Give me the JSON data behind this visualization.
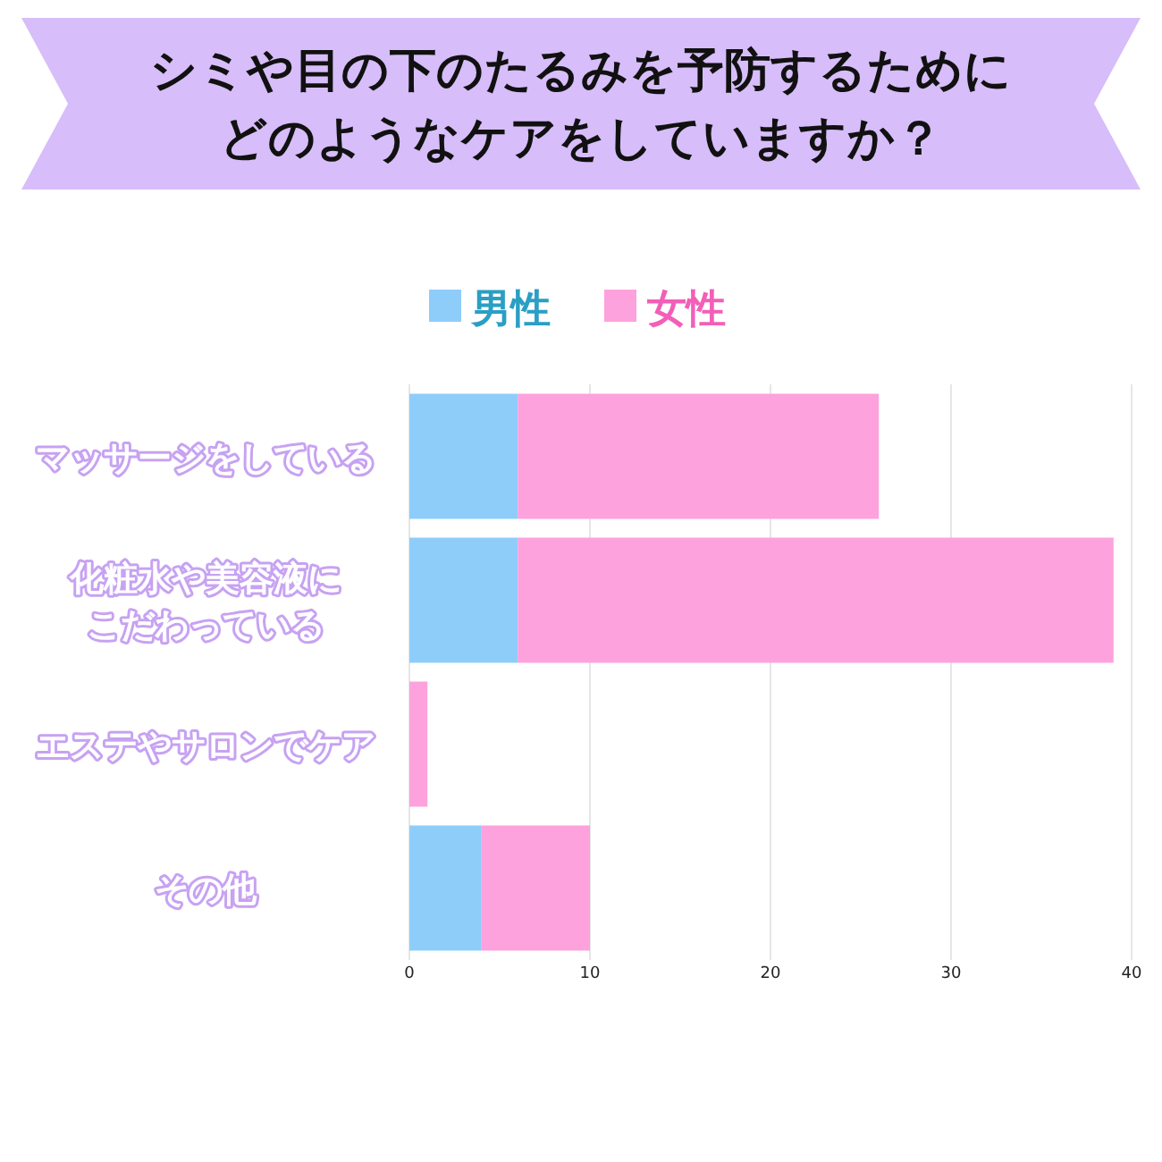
{
  "chart_data": {
    "type": "bar",
    "orientation": "horizontal",
    "stacked": true,
    "title": "シミや目の下のたるみを予防するためにどのようなケアをしていますか？",
    "categories": [
      "マッサージをしている",
      "化粧水や美容液にこだわっている",
      "エステやサロンでケア",
      "その他"
    ],
    "series": [
      {
        "name": "男性",
        "color": "#8ecdfa",
        "values": [
          6,
          6,
          0,
          4
        ]
      },
      {
        "name": "女性",
        "color": "#fda2dd",
        "values": [
          20,
          33,
          1,
          6
        ]
      }
    ],
    "xlim": [
      0,
      40
    ],
    "xticks": [
      0,
      10,
      20,
      30,
      40
    ],
    "grid": "x",
    "legend": "top"
  }
}
